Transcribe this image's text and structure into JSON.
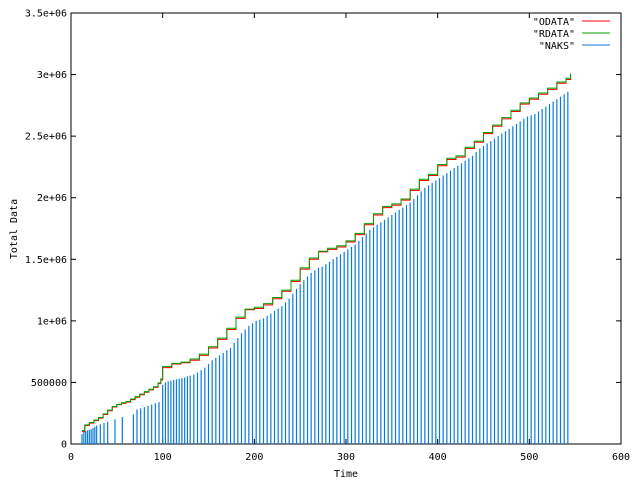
{
  "chart_data": {
    "type": "line",
    "title": "",
    "xlabel": "Time",
    "ylabel": "Total Data",
    "xlim": [
      0,
      600
    ],
    "ylim": [
      0,
      3500000
    ],
    "x_ticks": [
      0,
      100,
      200,
      300,
      400,
      500,
      600
    ],
    "x_tick_labels": [
      "0",
      "100",
      "200",
      "300",
      "400",
      "500",
      "600"
    ],
    "y_ticks": [
      0,
      500000,
      1000000,
      1500000,
      2000000,
      2500000,
      3000000,
      3500000
    ],
    "y_tick_labels": [
      "0",
      "500000",
      "1e+06",
      "1.5e+06",
      "2e+06",
      "2.5e+06",
      "3e+06",
      "3.5e+06"
    ],
    "grid": false,
    "legend_position": "top-right",
    "series": [
      {
        "name": "\"ODATA\"",
        "color": "#ff0000",
        "style": "step-line",
        "x": [
          12,
          15,
          20,
          25,
          30,
          35,
          40,
          45,
          50,
          55,
          60,
          65,
          70,
          75,
          80,
          85,
          90,
          95,
          98,
          100,
          110,
          120,
          130,
          140,
          150,
          160,
          170,
          180,
          190,
          200,
          210,
          220,
          230,
          240,
          250,
          260,
          270,
          280,
          290,
          300,
          310,
          320,
          330,
          340,
          350,
          360,
          370,
          380,
          390,
          400,
          410,
          420,
          430,
          440,
          450,
          460,
          470,
          480,
          490,
          500,
          510,
          520,
          530,
          540,
          545
        ],
        "y": [
          100000,
          150000,
          170000,
          190000,
          210000,
          240000,
          270000,
          300000,
          320000,
          330000,
          340000,
          360000,
          380000,
          400000,
          420000,
          440000,
          460000,
          490000,
          520000,
          620000,
          650000,
          660000,
          680000,
          720000,
          780000,
          850000,
          930000,
          1020000,
          1090000,
          1100000,
          1130000,
          1180000,
          1240000,
          1320000,
          1420000,
          1500000,
          1560000,
          1580000,
          1600000,
          1640000,
          1700000,
          1780000,
          1860000,
          1920000,
          1940000,
          1980000,
          2060000,
          2140000,
          2180000,
          2260000,
          2310000,
          2330000,
          2400000,
          2450000,
          2520000,
          2580000,
          2640000,
          2700000,
          2760000,
          2800000,
          2840000,
          2880000,
          2930000,
          2960000,
          3000000
        ]
      },
      {
        "name": "\"RDATA\"",
        "color": "#00a000",
        "style": "step-line",
        "x": [
          12,
          15,
          20,
          25,
          30,
          35,
          40,
          45,
          50,
          55,
          60,
          65,
          70,
          75,
          80,
          85,
          90,
          95,
          98,
          100,
          110,
          120,
          130,
          140,
          150,
          160,
          170,
          180,
          190,
          200,
          210,
          220,
          230,
          240,
          250,
          260,
          270,
          280,
          290,
          300,
          310,
          320,
          330,
          340,
          350,
          360,
          370,
          380,
          390,
          400,
          410,
          420,
          430,
          440,
          450,
          460,
          470,
          480,
          490,
          500,
          510,
          520,
          530,
          540,
          545
        ],
        "y": [
          110000,
          155000,
          175000,
          195000,
          215000,
          245000,
          275000,
          305000,
          320000,
          335000,
          345000,
          365000,
          385000,
          405000,
          425000,
          445000,
          465000,
          495000,
          530000,
          630000,
          655000,
          665000,
          690000,
          730000,
          790000,
          860000,
          940000,
          1030000,
          1095000,
          1110000,
          1140000,
          1190000,
          1250000,
          1330000,
          1430000,
          1510000,
          1565000,
          1590000,
          1610000,
          1650000,
          1710000,
          1790000,
          1870000,
          1930000,
          1950000,
          1990000,
          2070000,
          2150000,
          2190000,
          2270000,
          2320000,
          2340000,
          2410000,
          2460000,
          2530000,
          2590000,
          2650000,
          2710000,
          2770000,
          2810000,
          2850000,
          2890000,
          2940000,
          2970000,
          3010000
        ]
      },
      {
        "name": "\"NAKS\"",
        "color": "#0a7ae0",
        "style": "impulses",
        "x": [
          12,
          14,
          16,
          18,
          20,
          22,
          24,
          26,
          28,
          32,
          36,
          40,
          48,
          56,
          68,
          72,
          76,
          80,
          84,
          88,
          92,
          96,
          100,
          103,
          106,
          109,
          112,
          115,
          118,
          121,
          124,
          127,
          130,
          134,
          138,
          142,
          146,
          150,
          154,
          158,
          162,
          166,
          170,
          174,
          178,
          182,
          186,
          190,
          194,
          198,
          202,
          206,
          210,
          214,
          218,
          222,
          226,
          230,
          234,
          238,
          242,
          246,
          250,
          254,
          258,
          262,
          266,
          270,
          274,
          278,
          282,
          286,
          290,
          294,
          298,
          302,
          306,
          310,
          314,
          318,
          322,
          326,
          330,
          334,
          338,
          342,
          346,
          350,
          354,
          358,
          362,
          366,
          370,
          374,
          378,
          382,
          386,
          390,
          394,
          398,
          402,
          406,
          410,
          414,
          418,
          422,
          426,
          430,
          434,
          438,
          442,
          446,
          450,
          454,
          458,
          462,
          466,
          470,
          474,
          478,
          482,
          486,
          490,
          494,
          498,
          502,
          506,
          510,
          514,
          518,
          522,
          526,
          530,
          534,
          538,
          542
        ],
        "y": [
          80000,
          100000,
          105000,
          110000,
          115000,
          120000,
          130000,
          140000,
          150000,
          160000,
          170000,
          180000,
          200000,
          220000,
          240000,
          280000,
          290000,
          300000,
          310000,
          320000,
          330000,
          340000,
          480000,
          500000,
          510000,
          515000,
          520000,
          525000,
          530000,
          535000,
          540000,
          550000,
          555000,
          565000,
          580000,
          600000,
          620000,
          650000,
          680000,
          700000,
          720000,
          740000,
          760000,
          780000,
          820000,
          860000,
          900000,
          930000,
          960000,
          980000,
          1000000,
          1010000,
          1020000,
          1040000,
          1060000,
          1080000,
          1100000,
          1120000,
          1150000,
          1180000,
          1220000,
          1260000,
          1300000,
          1330000,
          1360000,
          1390000,
          1410000,
          1430000,
          1440000,
          1460000,
          1480000,
          1500000,
          1520000,
          1540000,
          1560000,
          1580000,
          1600000,
          1620000,
          1650000,
          1680000,
          1710000,
          1740000,
          1760000,
          1780000,
          1800000,
          1820000,
          1840000,
          1860000,
          1880000,
          1900000,
          1920000,
          1940000,
          1960000,
          1990000,
          2020000,
          2050000,
          2080000,
          2100000,
          2120000,
          2140000,
          2160000,
          2180000,
          2200000,
          2220000,
          2240000,
          2260000,
          2280000,
          2300000,
          2320000,
          2340000,
          2370000,
          2400000,
          2420000,
          2440000,
          2460000,
          2480000,
          2500000,
          2520000,
          2540000,
          2560000,
          2580000,
          2600000,
          2620000,
          2640000,
          2660000,
          2670000,
          2680000,
          2700000,
          2720000,
          2740000,
          2760000,
          2780000,
          2800000,
          2820000,
          2840000,
          2860000
        ]
      }
    ]
  }
}
